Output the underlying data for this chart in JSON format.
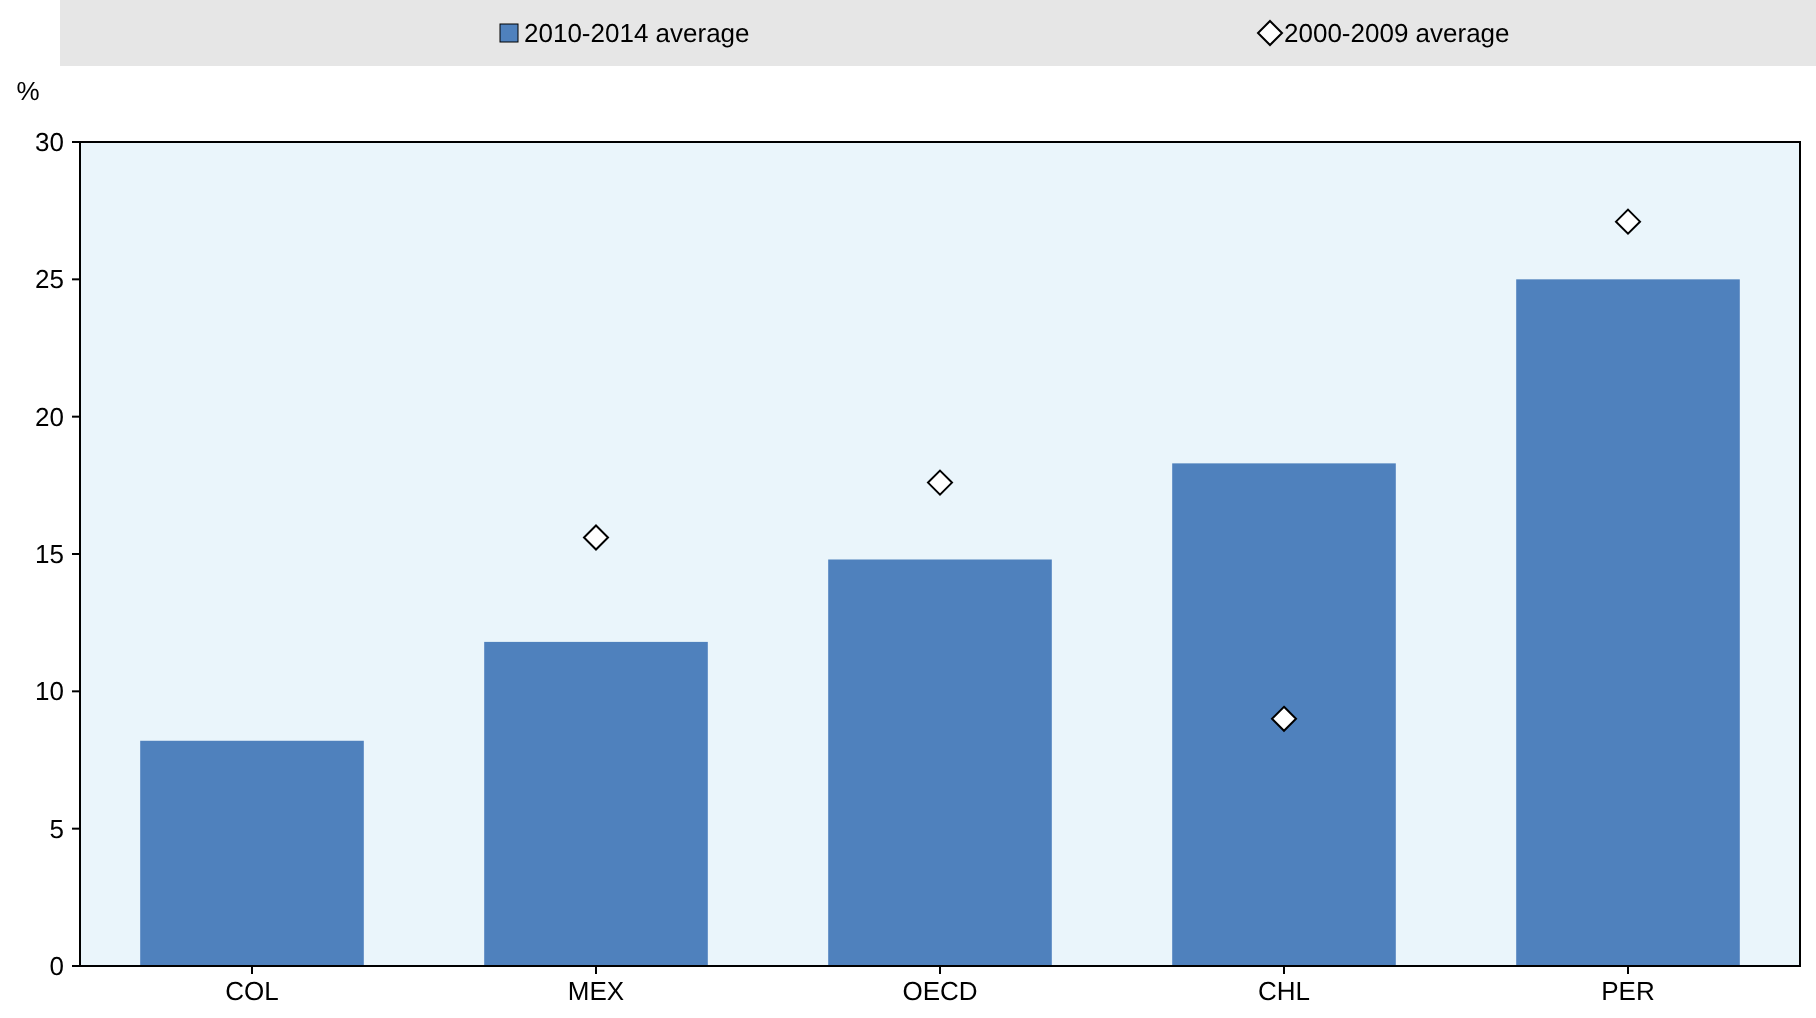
{
  "chart_data": {
    "type": "bar",
    "ylabel": "%",
    "categories": [
      "COL",
      "MEX",
      "OECD",
      "CHL",
      "PER"
    ],
    "series": [
      {
        "name": "2010-2014 average",
        "color": "#4f81bd",
        "values": [
          8.2,
          11.8,
          14.8,
          18.3,
          25.0
        ]
      },
      {
        "name": "2000-2009 average",
        "type": "scatter",
        "marker": "diamond",
        "color": "#ffffff",
        "x": [
          "COL",
          "MEX",
          "OECD",
          "CHL",
          "PER"
        ],
        "values": [
          null,
          15.6,
          17.6,
          9.0,
          27.1
        ]
      }
    ],
    "ylim": [
      0,
      30
    ],
    "yticks": [
      0,
      5,
      10,
      15,
      20,
      25,
      30
    ],
    "grid": false,
    "legend": "top"
  }
}
